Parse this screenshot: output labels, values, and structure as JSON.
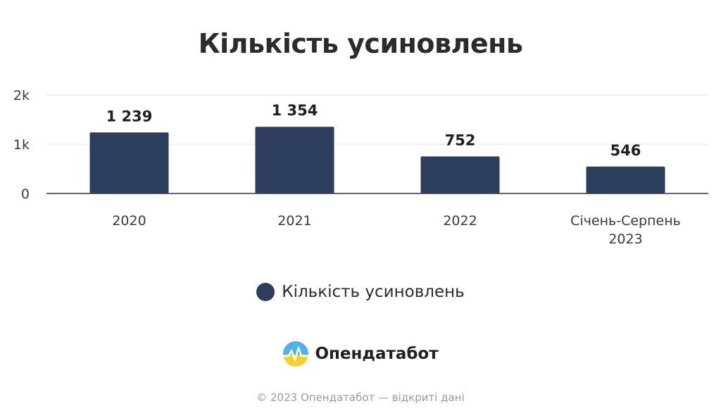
{
  "chart_data": {
    "type": "bar",
    "title": "Кількість усиновлень",
    "categories": [
      [
        "2020"
      ],
      [
        "2021"
      ],
      [
        "2022"
      ],
      [
        "Січень-Серпень",
        "2023"
      ]
    ],
    "series": [
      {
        "name": "Кількість усиновлень",
        "values": [
          1239,
          1354,
          752,
          546
        ],
        "labels": [
          "1 239",
          "1 354",
          "752",
          "546"
        ],
        "color": "#2d3d5e"
      }
    ],
    "ylim": [
      0,
      2000
    ],
    "yticks": [
      0,
      1000,
      2000
    ],
    "ytick_labels": [
      "0",
      "1k",
      "2k"
    ],
    "grid": true,
    "legend": "bottom-center"
  },
  "logo": {
    "text": "Опендатабот"
  },
  "footer": {
    "text": "© 2023 Опендатабот — відкриті дані"
  }
}
